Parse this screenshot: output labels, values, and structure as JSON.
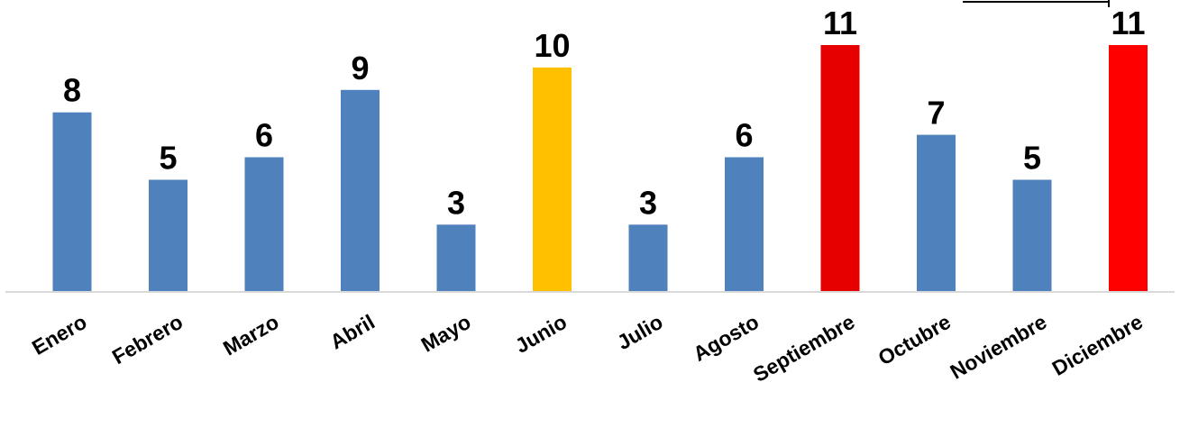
{
  "chart_data": {
    "type": "bar",
    "title": "",
    "xlabel": "",
    "ylabel": "",
    "categories": [
      "Enero",
      "Febrero",
      "Marzo",
      "Abril",
      "Mayo",
      "Junio",
      "Julio",
      "Agosto",
      "Septiembre",
      "Octubre",
      "Noviembre",
      "Diciembre"
    ],
    "values": [
      8,
      5,
      6,
      9,
      3,
      10,
      3,
      6,
      11,
      7,
      5,
      11
    ],
    "bar_colors": [
      "#4F81BD",
      "#4F81BD",
      "#4F81BD",
      "#4F81BD",
      "#4F81BD",
      "#FFC000",
      "#4F81BD",
      "#4F81BD",
      "#E60000",
      "#4F81BD",
      "#4F81BD",
      "#FF0000"
    ],
    "ylim": [
      0,
      11
    ],
    "grid": false,
    "legend": "none",
    "axis_line_color": "#D9D9D9",
    "data_labels": true
  }
}
